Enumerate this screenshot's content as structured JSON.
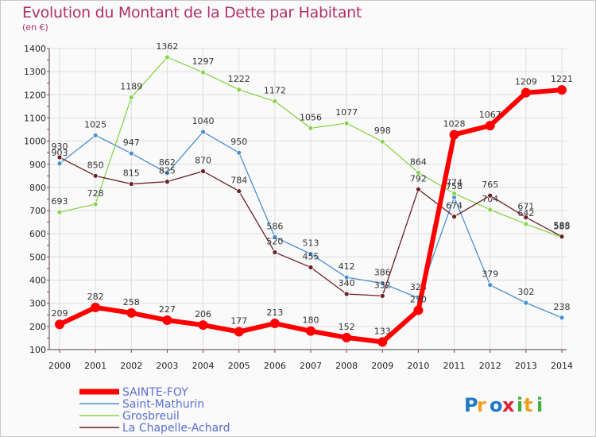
{
  "title": "Evolution du Montant de la Dette par Habitant",
  "subtitle": "(en €)",
  "brand": "Proxiti",
  "chart_data": {
    "type": "line",
    "x": [
      "2000",
      "2001",
      "2002",
      "2003",
      "2004",
      "2005",
      "2006",
      "2007",
      "2008",
      "2009",
      "2010",
      "2011",
      "2012",
      "2013",
      "2014"
    ],
    "ylim": [
      100,
      1400
    ],
    "yticks": [
      100,
      200,
      300,
      400,
      500,
      600,
      700,
      800,
      900,
      1000,
      1100,
      1200,
      1300,
      1400
    ],
    "grid": true,
    "legend_placement": "bottom-left",
    "series": [
      {
        "name": "SAINTE-FOY",
        "color": "#ff0000",
        "width": 6,
        "values": [
          209,
          282,
          258,
          227,
          206,
          177,
          213,
          180,
          152,
          133,
          270,
          1028,
          1067,
          1209,
          1221
        ]
      },
      {
        "name": "Saint-Mathurin",
        "color": "#4a8fd0",
        "width": 1.3,
        "values": [
          903,
          1025,
          947,
          862,
          1040,
          950,
          586,
          513,
          412,
          386,
          323,
          758,
          379,
          302,
          238
        ]
      },
      {
        "name": "Grosbreuil",
        "color": "#88d44a",
        "width": 1.3,
        "values": [
          693,
          728,
          1189,
          1362,
          1297,
          1222,
          1172,
          1056,
          1077,
          998,
          864,
          774,
          704,
          642,
          585
        ]
      },
      {
        "name": "La Chapelle-Achard",
        "color": "#6b1f26",
        "width": 1.3,
        "values": [
          930,
          850,
          815,
          825,
          870,
          784,
          520,
          455,
          340,
          332,
          792,
          674,
          765,
          671,
          588
        ]
      }
    ]
  }
}
